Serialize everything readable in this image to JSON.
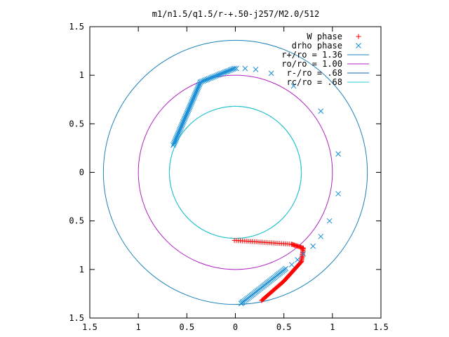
{
  "chart_data": {
    "type": "scatter",
    "title": "m1/n1.5/q1.5/r-+.50-j257/M2.0/512",
    "xlim": [
      -1.5,
      1.5
    ],
    "ylim": [
      -1.5,
      1.5
    ],
    "x_ticks": [
      {
        "value": -1.5,
        "label": "1.5"
      },
      {
        "value": -1.0,
        "label": "1"
      },
      {
        "value": -0.5,
        "label": "0.5"
      },
      {
        "value": 0.0,
        "label": "0"
      },
      {
        "value": 0.5,
        "label": "0.5"
      },
      {
        "value": 1.0,
        "label": "1"
      },
      {
        "value": 1.5,
        "label": "1.5"
      }
    ],
    "y_ticks": [
      {
        "value": 1.5,
        "label": "1.5"
      },
      {
        "value": 1.0,
        "label": "1"
      },
      {
        "value": 0.5,
        "label": "0.5"
      },
      {
        "value": 0.0,
        "label": "0"
      },
      {
        "value": -0.5,
        "label": "0.5"
      },
      {
        "value": -1.0,
        "label": "1"
      },
      {
        "value": -1.5,
        "label": "1.5"
      }
    ],
    "grid": false,
    "legend_position": "top-right",
    "series": [
      {
        "name": "W phase",
        "kind": "points",
        "marker": "plus",
        "color": "#ff0000",
        "arms": [
          {
            "from": [
              -0.01,
              -0.7
            ],
            "to": [
              0.58,
              -0.74
            ],
            "n": 30
          },
          {
            "from": [
              0.58,
              -0.74
            ],
            "to": [
              0.7,
              -0.78
            ],
            "n": 14
          },
          {
            "from": [
              0.7,
              -0.78
            ],
            "to": [
              0.68,
              -0.92
            ],
            "n": 14
          },
          {
            "from": [
              0.68,
              -0.92
            ],
            "to": [
              0.5,
              -1.12
            ],
            "n": 30
          },
          {
            "from": [
              0.5,
              -1.12
            ],
            "to": [
              0.27,
              -1.32
            ],
            "n": 30
          }
        ]
      },
      {
        "name": "drho phase",
        "kind": "points",
        "marker": "cross",
        "color": "#1a8fd6",
        "arms": [
          {
            "from": [
              -0.64,
              0.28
            ],
            "to": [
              -0.36,
              0.93
            ],
            "n": 50
          },
          {
            "from": [
              -0.36,
              0.93
            ],
            "to": [
              -0.01,
              1.07
            ],
            "n": 26
          },
          {
            "from": [
              0.52,
              -0.99
            ],
            "to": [
              0.06,
              -1.35
            ],
            "n": 40
          },
          {
            "from": [
              0.06,
              -1.35
            ],
            "to": [
              0.08,
              -1.33
            ],
            "n": 3
          }
        ],
        "points": [
          [
            0.01,
            1.07
          ],
          [
            0.1,
            1.07
          ],
          [
            0.21,
            1.06
          ],
          [
            0.37,
            1.02
          ],
          [
            0.6,
            0.89
          ],
          [
            0.88,
            0.63
          ],
          [
            1.06,
            0.19
          ],
          [
            1.06,
            -0.22
          ],
          [
            0.97,
            -0.5
          ],
          [
            0.88,
            -0.66
          ],
          [
            0.8,
            -0.76
          ],
          [
            0.7,
            -0.84
          ],
          [
            0.64,
            -0.9
          ],
          [
            0.58,
            -0.95
          ]
        ]
      },
      {
        "name": "r+/ro = 1.36",
        "kind": "circle",
        "radius": 1.36,
        "color": "#1a80b8"
      },
      {
        "name": "ro/ro = 1.00",
        "kind": "circle",
        "radius": 1.0,
        "color": "#b020c0"
      },
      {
        "name": "r-/ro = .68",
        "kind": "circle",
        "radius": 0.68,
        "color": "#1060b0"
      },
      {
        "name": "rc/ro = .68",
        "kind": "circle",
        "radius": 0.68,
        "color": "#20d0d0"
      }
    ]
  }
}
